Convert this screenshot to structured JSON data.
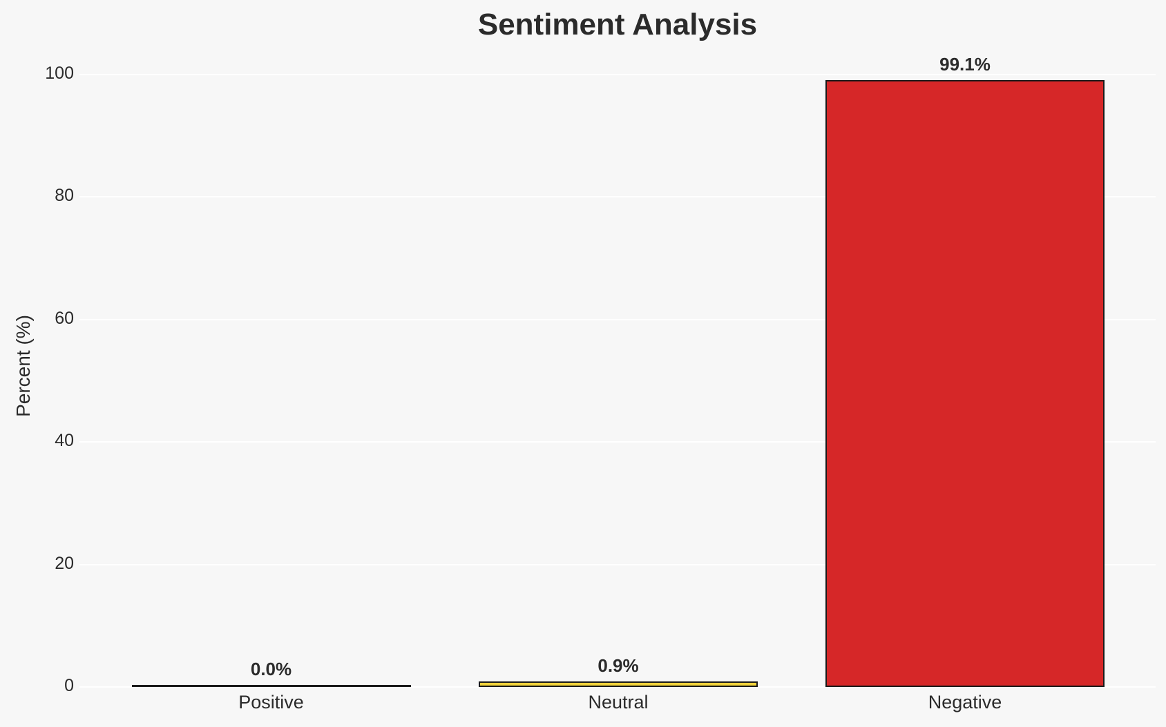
{
  "chart_data": {
    "type": "bar",
    "title": "Sentiment Analysis",
    "ylabel": "Percent (%)",
    "xlabel": "",
    "categories": [
      "Positive",
      "Neutral",
      "Negative"
    ],
    "values": [
      0.0,
      0.9,
      99.1
    ],
    "bar_labels": [
      "0.0%",
      "0.9%",
      "99.1%"
    ],
    "bar_colors": [
      "#1a1a1a",
      "#f2d33c",
      "#d62728"
    ],
    "bar_edge_color": "#1a1a1a",
    "ylim": [
      0,
      105
    ],
    "yticks": [
      0,
      20,
      40,
      60,
      80,
      100
    ],
    "grid": "horizontal",
    "legend": "none",
    "background_color": "#f7f7f7",
    "gridline_color": "#ffffff",
    "text_color": "#2b2b2b"
  }
}
